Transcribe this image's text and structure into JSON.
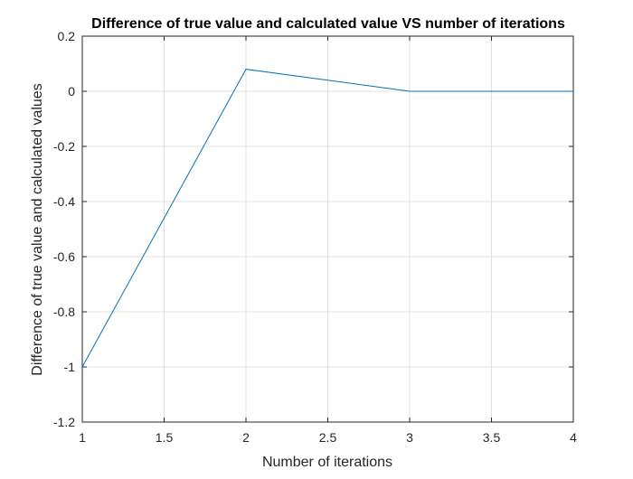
{
  "chart_data": {
    "type": "line",
    "title": "Difference of true value and calculated value VS number of iterations",
    "xlabel": "Number of iterations",
    "ylabel": "Difference of true value and calculated values",
    "xlim": [
      1,
      4
    ],
    "ylim": [
      -1.2,
      0.2
    ],
    "xticks": [
      1,
      1.5,
      2,
      2.5,
      3,
      3.5,
      4
    ],
    "xtick_labels": [
      "1",
      "1.5",
      "2",
      "2.5",
      "3",
      "3.5",
      "4"
    ],
    "yticks": [
      0.2,
      0,
      -0.2,
      -0.4,
      -0.6,
      -0.8,
      -1,
      -1.2
    ],
    "ytick_labels": [
      "0.2",
      "0",
      "-0.2",
      "-0.4",
      "-0.6",
      "-0.8",
      "-1",
      "-1.2"
    ],
    "grid": true,
    "series": [
      {
        "x": [
          1,
          2,
          3,
          4
        ],
        "y": [
          -1.0,
          0.08,
          0.0,
          0.0
        ],
        "color": "#0072BD"
      }
    ]
  }
}
